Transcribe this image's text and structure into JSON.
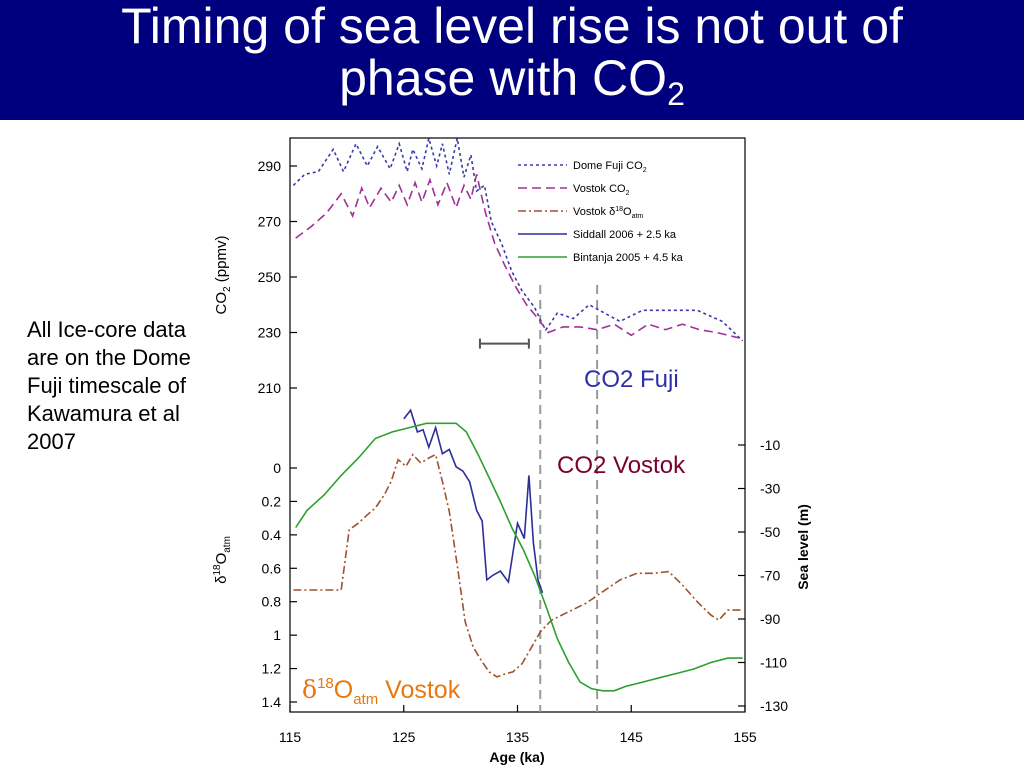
{
  "slide": {
    "title_line1": "Timing of sea level rise is not out of",
    "title_line2": "phase with CO",
    "title_sub": "2",
    "note": "All Ice-core data are on the Dome Fuji timescale of Kawamura et al 2007"
  },
  "annotations": {
    "co2_fuji": "CO2 Fuji",
    "co2_vostok": "CO2 Vostok",
    "d18o_delta": "δ",
    "d18o_sup": "18",
    "d18o_O": "O",
    "d18o_sub": "atm",
    "d18o_rest": " Vostok"
  },
  "colors": {
    "title_bg": "#00007f",
    "dome_fuji": "#3a3aa8",
    "vostok_co2": "#a0309a",
    "vostok_d18o": "#a0522d",
    "siddall": "#2e2e98",
    "bintanja": "#2ea02e",
    "ann_fuji": "#2e2ea8",
    "ann_vostok": "#7a0030",
    "ann_d18o": "#e87810"
  },
  "chart_data": {
    "type": "line",
    "xlabel": "Age (ka)",
    "xlim": [
      115,
      155
    ],
    "xticks": [
      "115",
      "125",
      "135",
      "145",
      "155"
    ],
    "co2_axis": {
      "label": "CO",
      "label_sub": "2",
      "label_rest": " (ppmv)",
      "ylim": [
        190,
        300
      ],
      "ticks": [
        "290",
        "270",
        "250",
        "230",
        "210"
      ],
      "tick_values": [
        290,
        270,
        250,
        230,
        210
      ]
    },
    "d18o_axis": {
      "label_delta": "δ",
      "label_sup": "18",
      "label_O": "O",
      "label_sub": "atm",
      "ylim": [
        -0.05,
        1.45
      ],
      "ticks": [
        "0",
        "0.2",
        "0.4",
        "0.6",
        "0.8",
        "1",
        "1.2",
        "1.4"
      ],
      "tick_values": [
        0,
        0.2,
        0.4,
        0.6,
        0.8,
        1,
        1.2,
        1.4
      ]
    },
    "sea_level_axis": {
      "label": "Sea level (m)",
      "ylim": [
        -132,
        0
      ],
      "ticks": [
        "-10",
        "-30",
        "-50",
        "-70",
        "-90",
        "-110",
        "-130"
      ],
      "tick_values": [
        -10,
        -30,
        -50,
        -70,
        -90,
        -110,
        -130
      ]
    },
    "vertical_lines": [
      137,
      142
    ],
    "error_bar": {
      "x_from": 131.7,
      "x_to": 136,
      "y": 226
    },
    "legend": {
      "placement": "top-right",
      "entries": [
        {
          "label": "Dome Fuji CO",
          "sub": "2",
          "series": "dome_fuji"
        },
        {
          "label": "Vostok CO",
          "sub": "2",
          "series": "vostok_co2"
        },
        {
          "label": "Vostok δ",
          "sup": "18",
          "label2": "O",
          "sub": "atm",
          "series": "vostok_d18o"
        },
        {
          "label": "Siddall 2006 + 2.5 ka",
          "series": "siddall"
        },
        {
          "label": "Bintanja 2005 + 4.5 ka",
          "series": "bintanja"
        }
      ]
    },
    "series": [
      {
        "key": "dome_fuji",
        "axis": "co2",
        "style": "dotted",
        "x": [
          115.3,
          116.3,
          117.5,
          118.8,
          119.7,
          120.8,
          121.8,
          122.7,
          123.8,
          124.6,
          125.3,
          125.8,
          126.6,
          127.2,
          127.9,
          128.4,
          129,
          129.7,
          130.3,
          130.9,
          131.4,
          132.1,
          132.7,
          133.6,
          134.5,
          135.4,
          136.5,
          137.2,
          137.5,
          138.5,
          139.9,
          141.3,
          142.2,
          144,
          146,
          148.5,
          150.8,
          153,
          154.8
        ],
        "y": [
          283,
          287,
          288,
          296,
          288,
          298,
          290,
          297,
          289,
          298,
          288,
          296,
          289,
          300,
          290,
          298,
          287,
          300,
          286,
          294,
          281,
          283,
          270,
          262,
          252,
          245,
          239,
          233,
          231,
          237,
          235,
          240,
          238,
          234,
          238,
          238,
          238,
          234,
          227
        ]
      },
      {
        "key": "vostok_co2",
        "axis": "co2",
        "style": "dashed",
        "x": [
          115.5,
          116.8,
          118.2,
          119.5,
          120.5,
          121.3,
          122,
          123,
          123.9,
          124.6,
          125.3,
          126,
          126.6,
          127.3,
          128,
          128.8,
          129.6,
          130.3,
          130.9,
          131.4,
          132.2,
          133,
          133.9,
          134.9,
          135.8,
          136.8,
          137.7,
          139,
          140.5,
          142,
          143.5,
          145,
          146.5,
          148,
          149.5,
          151,
          152.5,
          154.5
        ],
        "y": [
          264,
          268,
          273,
          280,
          272,
          282,
          275,
          282,
          277,
          283,
          276,
          284,
          277,
          285,
          276,
          284,
          275,
          283,
          278,
          287,
          273,
          262,
          254,
          246,
          240,
          235,
          230,
          232,
          232,
          231,
          233,
          229,
          233,
          231,
          233,
          231,
          230,
          228
        ]
      },
      {
        "key": "vostok_d18o",
        "axis": "d18o",
        "style": "dashdot",
        "x": [
          115.3,
          116.5,
          117.5,
          118.5,
          119.5,
          120.2,
          121,
          121.8,
          122.5,
          123.3,
          123.9,
          124.5,
          125.2,
          125.8,
          126.5,
          127.2,
          127.8,
          128.4,
          129,
          129.7,
          130.4,
          131.1,
          131.8,
          132.5,
          133.2,
          134,
          134.6,
          135.4,
          136,
          137,
          138,
          139.5,
          141,
          142.5,
          144,
          145.5,
          147,
          148.3,
          149.5,
          150.8,
          152,
          152.7,
          153.5,
          154.8
        ],
        "y": [
          0.73,
          0.73,
          0.73,
          0.73,
          0.73,
          0.37,
          0.33,
          0.28,
          0.24,
          0.16,
          0.08,
          -0.05,
          -0.01,
          -0.08,
          -0.03,
          -0.06,
          -0.08,
          0.08,
          0.26,
          0.58,
          0.92,
          1.07,
          1.15,
          1.22,
          1.25,
          1.23,
          1.22,
          1.17,
          1.1,
          0.98,
          0.91,
          0.86,
          0.81,
          0.74,
          0.67,
          0.63,
          0.63,
          0.62,
          0.7,
          0.8,
          0.88,
          0.91,
          0.85,
          0.85
        ]
      },
      {
        "key": "siddall",
        "axis": "sea",
        "style": "solid",
        "x": [
          125,
          125.6,
          126.2,
          126.7,
          127.2,
          127.8,
          128.4,
          129,
          129.6,
          130.2,
          130.8,
          131.4,
          131.9,
          132.3,
          132.8,
          133.5,
          134.2,
          135,
          135.6,
          136,
          136.4,
          136.8,
          137.2
        ],
        "y": [
          2,
          6,
          -4,
          -3,
          -11,
          -2,
          -14,
          -12,
          -20,
          -22,
          -27,
          -40,
          -45,
          -72,
          -70,
          -68,
          -73,
          -46,
          -53,
          -24,
          -55,
          -72,
          -78
        ]
      },
      {
        "key": "bintanja",
        "axis": "sea",
        "style": "solid",
        "x": [
          115.5,
          116.5,
          118,
          119.5,
          121,
          122.5,
          124,
          125.5,
          127,
          128.5,
          129.6,
          130.5,
          131.5,
          132.5,
          133.5,
          134.5,
          135.5,
          136.5,
          137.5,
          138.5,
          139.5,
          140.5,
          141.5,
          142.5,
          143.5,
          144.5,
          146,
          147.5,
          149,
          150.5,
          152,
          153.5,
          154.8
        ],
        "y": [
          -48,
          -40,
          -33,
          -24,
          -16,
          -7,
          -4,
          -2,
          0,
          0,
          0,
          -4,
          -14,
          -25,
          -36,
          -48,
          -58,
          -70,
          -84,
          -99,
          -110,
          -119,
          -122,
          -123,
          -123,
          -121,
          -119,
          -117,
          -115,
          -113,
          -110,
          -108,
          -108
        ]
      }
    ]
  }
}
